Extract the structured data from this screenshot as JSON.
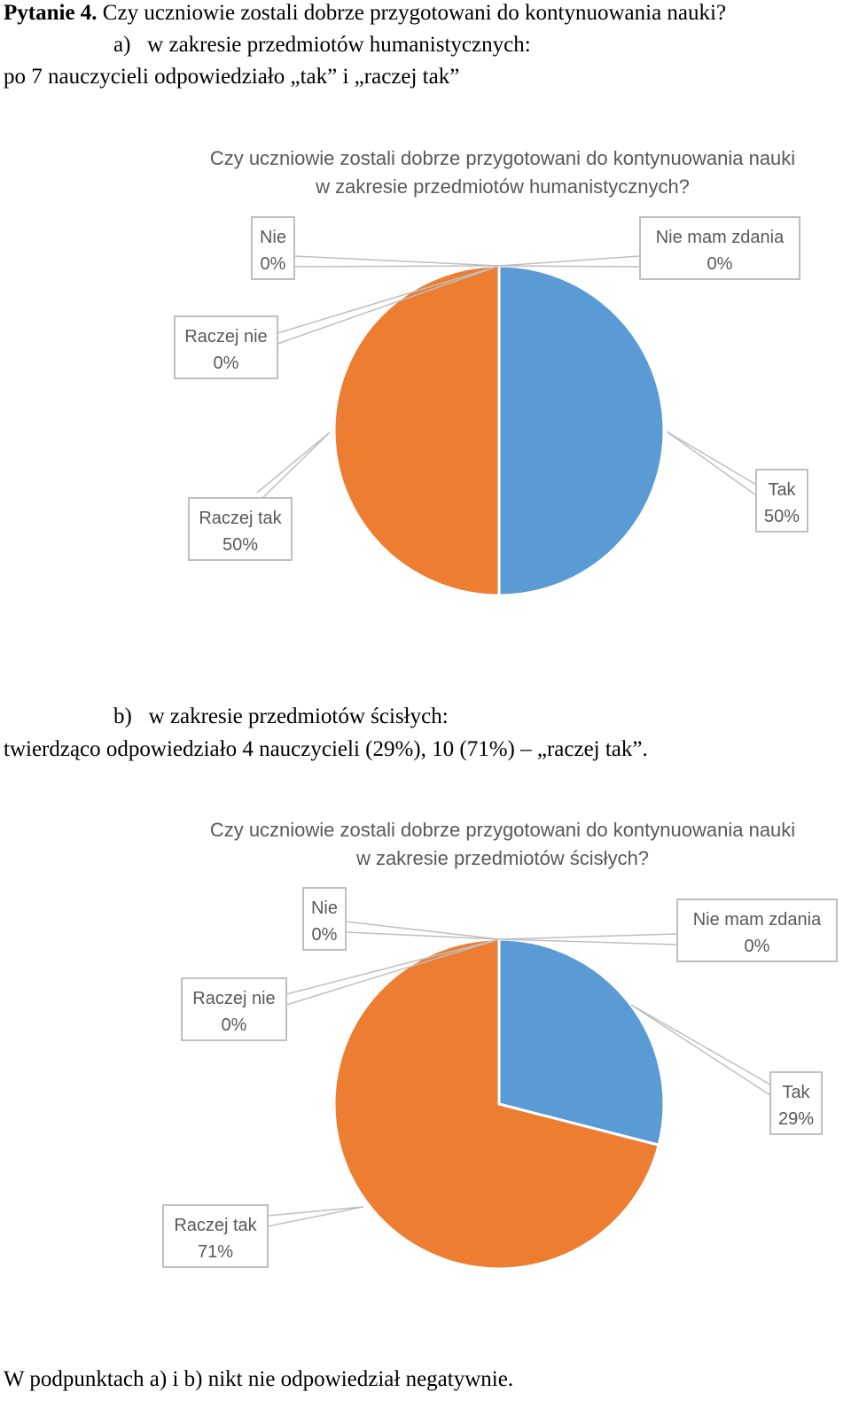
{
  "heading": {
    "number": "Pytanie 4.",
    "question": "Czy uczniowie zostali dobrze przygotowani do kontynuowania nauki?"
  },
  "section_a": {
    "marker": "a)",
    "title": "w zakresie przedmiotów humanistycznych:",
    "summary": "po 7 nauczycieli odpowiedziało „tak” i „raczej tak”"
  },
  "section_b": {
    "marker": "b)",
    "title": "w zakresie przedmiotów ścisłych:",
    "summary": "twierdząco odpowiedziało 4 nauczycieli (29%), 10 (71%) – „raczej tak”."
  },
  "footer": "W  podpunktach a) i b) nikt nie odpowiedział negatywnie.",
  "colors": {
    "tak": "#5b9bd5",
    "raczej_tak": "#ed7d31",
    "label_text": "#595959",
    "label_border": "#bfbfbf"
  },
  "chart_data": [
    {
      "type": "pie",
      "title_lines": [
        "Czy uczniowie zostali dobrze przygotowani do kontynuowania nauki",
        "w zakresie przedmiotów humanistycznych?"
      ],
      "slices": [
        {
          "name": "Tak",
          "value": 50,
          "label": "50%"
        },
        {
          "name": "Nie mam zdania",
          "value": 0,
          "label": "0%"
        },
        {
          "name": "Nie",
          "value": 0,
          "label": "0%"
        },
        {
          "name": "Raczej nie",
          "value": 0,
          "label": "0%"
        },
        {
          "name": "Raczej tak",
          "value": 50,
          "label": "50%"
        }
      ]
    },
    {
      "type": "pie",
      "title_lines": [
        "Czy uczniowie zostali dobrze przygotowani do kontynuowania nauki",
        "w zakresie przedmiotów ścisłych?"
      ],
      "slices": [
        {
          "name": "Tak",
          "value": 29,
          "label": "29%"
        },
        {
          "name": "Nie mam zdania",
          "value": 0,
          "label": "0%"
        },
        {
          "name": "Nie",
          "value": 0,
          "label": "0%"
        },
        {
          "name": "Raczej nie",
          "value": 0,
          "label": "0%"
        },
        {
          "name": "Raczej tak",
          "value": 71,
          "label": "71%"
        }
      ]
    }
  ]
}
